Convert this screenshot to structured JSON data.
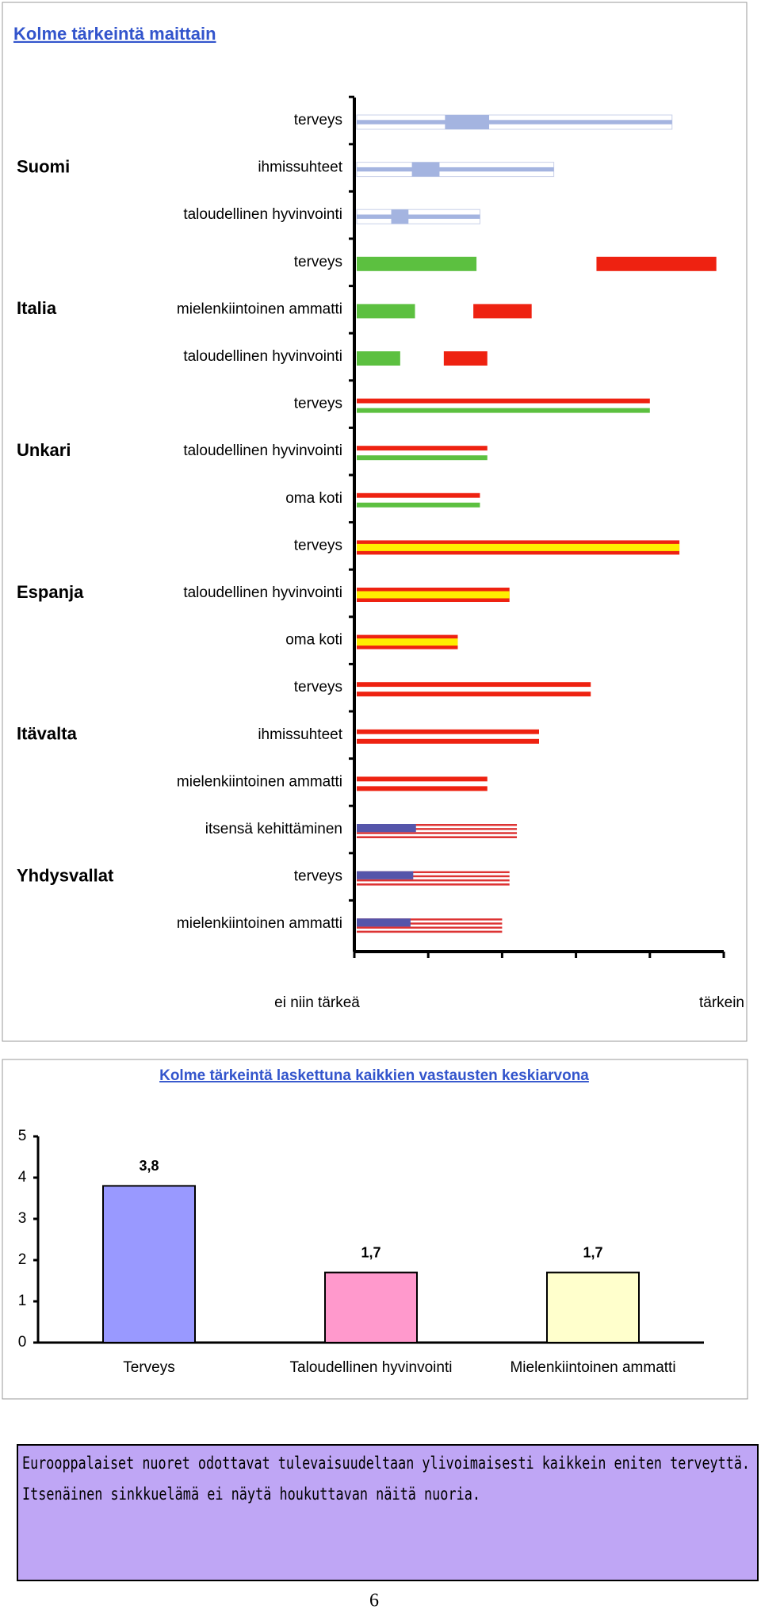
{
  "chart_data": [
    {
      "type": "bar",
      "horizontal": true,
      "title": "Kolme tärkeintä maittain",
      "xlim": [
        0,
        5
      ],
      "xticks": [
        0,
        1,
        2,
        3,
        4,
        5
      ],
      "x_min_label": "ei niin tärkeä",
      "x_max_label": "tärkein",
      "series": [
        {
          "name": "Suomi",
          "flag": "finland",
          "categories": [
            "terveys",
            "ihmissuhteet",
            "taloudellinen hyvinvointi"
          ],
          "values": [
            4.3,
            2.7,
            1.7
          ]
        },
        {
          "name": "Italia",
          "flag": "italy",
          "categories": [
            "terveys",
            "mielenkiintoinen ammatti",
            "taloudellinen hyvinvointi"
          ],
          "values": [
            4.9,
            2.4,
            1.8
          ]
        },
        {
          "name": "Unkari",
          "flag": "hungary",
          "categories": [
            "terveys",
            "taloudellinen hyvinvointi",
            "oma koti"
          ],
          "values": [
            4.0,
            1.8,
            1.7
          ]
        },
        {
          "name": "Espanja",
          "flag": "spain",
          "categories": [
            "terveys",
            "taloudellinen hyvinvointi",
            "oma koti"
          ],
          "values": [
            4.4,
            2.1,
            1.4
          ]
        },
        {
          "name": "Itävalta",
          "flag": "austria",
          "categories": [
            "terveys",
            "ihmissuhteet",
            "mielenkiintoinen ammatti"
          ],
          "values": [
            3.2,
            2.5,
            1.8
          ]
        },
        {
          "name": "Yhdysvallat",
          "flag": "usa",
          "categories": [
            "itsensä kehittäminen",
            "terveys",
            "mielenkiintoinen ammatti"
          ],
          "values": [
            2.2,
            2.1,
            2.0
          ]
        }
      ]
    },
    {
      "type": "bar",
      "title": "Kolme tärkeintä laskettuna kaikkien vastausten keskiarvona",
      "categories": [
        "Terveys",
        "Taloudellinen hyvinvointi",
        "Mielenkiintoinen ammatti"
      ],
      "values": [
        3.8,
        1.7,
        1.7
      ],
      "value_labels": [
        "3,8",
        "1,7",
        "1,7"
      ],
      "colors": [
        "#9999ff",
        "#ff99cc",
        "#ffffcc"
      ],
      "ylim": [
        0,
        5
      ],
      "yticks": [
        0,
        1,
        2,
        3,
        4,
        5
      ]
    }
  ],
  "caption": {
    "lines": [
      "Eurooppalaiset nuoret odottavat tulevaisuudeltaan ylivoimaisesti kaikkein eniten terveyttä.",
      "Itsenäinen sinkkuelämä ei näytä houkuttavan näitä nuoria."
    ]
  },
  "page_number": 6
}
